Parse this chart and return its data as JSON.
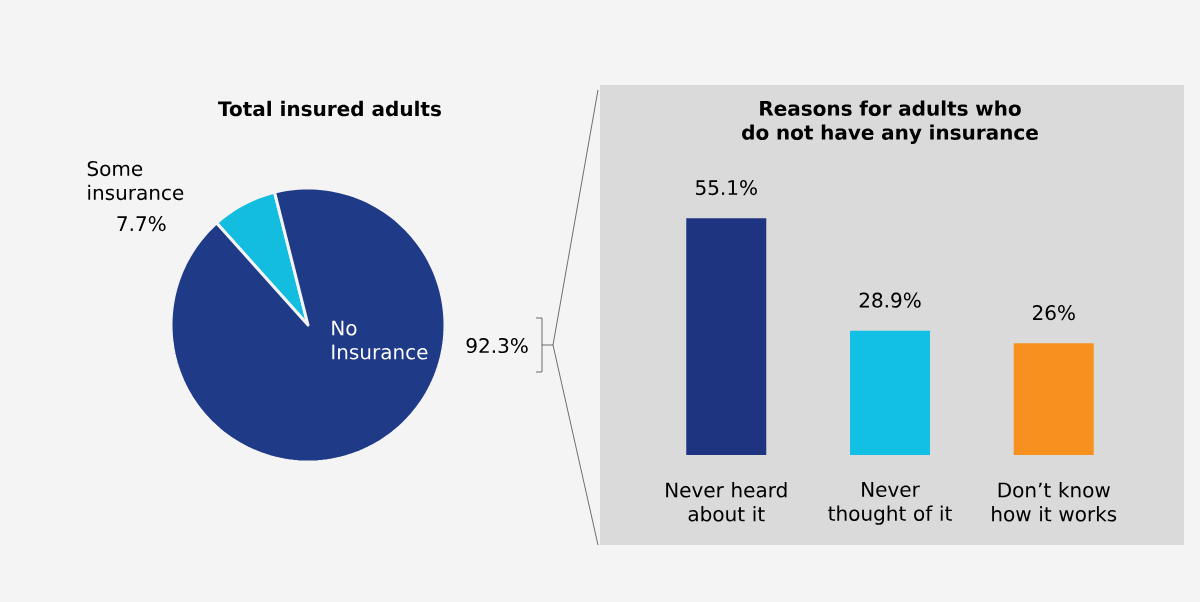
{
  "chart_data": [
    {
      "type": "pie",
      "title": "Total insured adults",
      "categories": [
        "Some insurance",
        "No Insurance"
      ],
      "values": [
        7.7,
        92.3
      ],
      "colors": [
        "#12bde0",
        "#1f3a87"
      ],
      "value_labels": [
        "7.7%",
        "92.3%"
      ]
    },
    {
      "type": "bar",
      "title": "Reasons for adults who do not have any insurance",
      "categories": [
        "Never heard about it",
        "Never thought of it",
        "Don’t know how it works"
      ],
      "values": [
        55.1,
        28.9,
        26
      ],
      "colors": [
        "#1e3480",
        "#12c0e6",
        "#f7901e"
      ],
      "value_labels": [
        "55.1%",
        "28.9%",
        "26%"
      ]
    }
  ]
}
